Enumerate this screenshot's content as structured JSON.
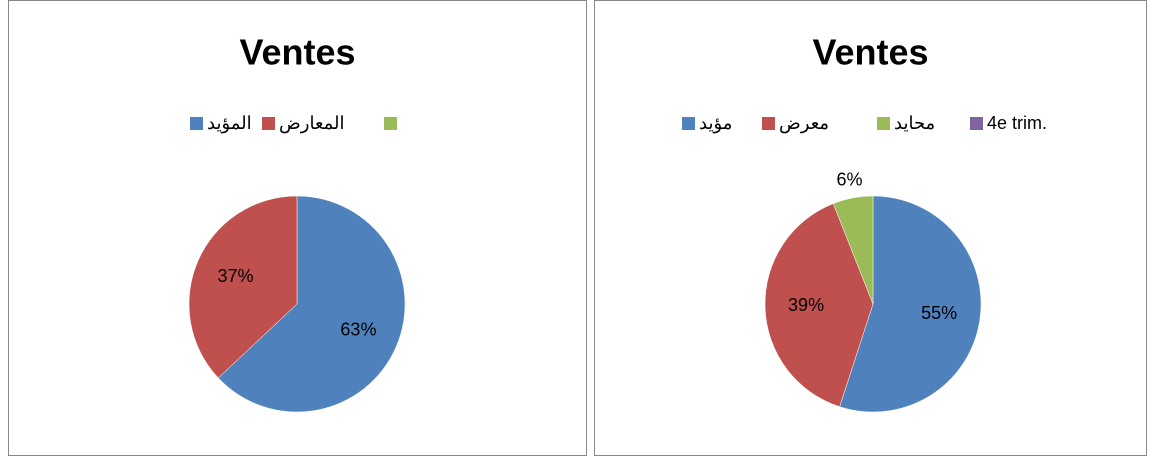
{
  "chart_data": [
    {
      "type": "pie",
      "title": "Ventes",
      "categories": [
        "المؤيد",
        "المعارض",
        null
      ],
      "values": [
        63,
        37,
        0
      ],
      "value_labels": [
        "63%",
        "37%",
        null
      ],
      "colors": [
        "#4f81bd",
        "#c0504d",
        "#9bbb59"
      ],
      "legend": "top"
    },
    {
      "type": "pie",
      "title": "Ventes",
      "categories": [
        "مؤيد",
        "معرض",
        "محايد",
        "4e trim."
      ],
      "values": [
        55,
        39,
        6,
        0
      ],
      "value_labels": [
        "55%",
        "39%",
        "6%",
        null
      ],
      "colors": [
        "#4f81bd",
        "#c0504d",
        "#9bbb59",
        "#8064a2"
      ],
      "legend": "top"
    }
  ]
}
